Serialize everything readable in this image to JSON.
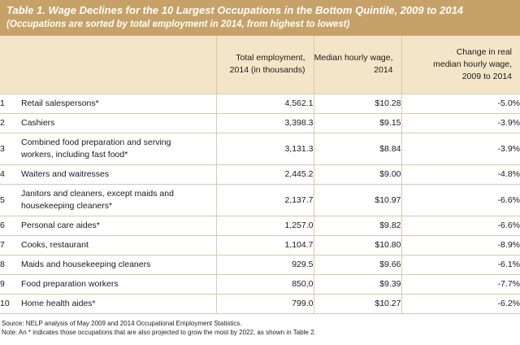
{
  "header": {
    "title": "Table 1. Wage Declines for the 10 Largest Occupations in the Bottom Quintile, 2009 to 2014",
    "subtitle": "(Occupations are sorted by total employment in 2014, from highest to lowest)"
  },
  "columns": {
    "employment": [
      "Total employment,",
      "2014 (in thousands)"
    ],
    "wage": [
      "Median hourly wage,",
      "2014"
    ],
    "change": [
      "Change in real",
      "median hourly wage,",
      "2009 to 2014"
    ]
  },
  "rows": [
    {
      "rank": "1",
      "lines": [
        "Retail salespersons*"
      ],
      "employment": "4,562.1",
      "wage": "$10.28",
      "change": "-5.0%"
    },
    {
      "rank": "2",
      "lines": [
        "Cashiers"
      ],
      "employment": "3,398.3",
      "wage": "$9.15",
      "change": "-3.9%"
    },
    {
      "rank": "3",
      "lines": [
        "Combined food preparation and serving",
        "workers, including fast food*"
      ],
      "employment": "3,131.3",
      "wage": "$8.84",
      "change": "-3.9%"
    },
    {
      "rank": "4",
      "lines": [
        "Waiters and waitresses"
      ],
      "employment": "2,445.2",
      "wage": "$9.00",
      "change": "-4.8%"
    },
    {
      "rank": "5",
      "lines": [
        "Janitors and cleaners, except maids and",
        "housekeeping cleaners*"
      ],
      "employment": "2,137.7",
      "wage": "$10.97",
      "change": "-6.6%"
    },
    {
      "rank": "6",
      "lines": [
        "Personal care aides*"
      ],
      "employment": "1,257.0",
      "wage": "$9.82",
      "change": "-6.6%"
    },
    {
      "rank": "7",
      "lines": [
        "Cooks, restaurant"
      ],
      "employment": "1,104.7",
      "wage": "$10.80",
      "change": "-8.9%"
    },
    {
      "rank": "8",
      "lines": [
        "Maids and housekeeping cleaners"
      ],
      "employment": "929.5",
      "wage": "$9.66",
      "change": "-6.1%"
    },
    {
      "rank": "9",
      "lines": [
        "Food preparation workers"
      ],
      "employment": "850,0",
      "wage": "$9.39",
      "change": "-7.7%"
    },
    {
      "rank": "10",
      "lines": [
        "Home health aides*"
      ],
      "employment": "799.0",
      "wage": "$10.27",
      "change": "-6.2%"
    }
  ],
  "notes": {
    "source": "Source: NELP analysis of May 2009 and 2014 Occupational Employment Statistics.",
    "note": "Note: An * indicates those occupations that are also projected to grow the most by 2022, as shown in Table 2."
  }
}
